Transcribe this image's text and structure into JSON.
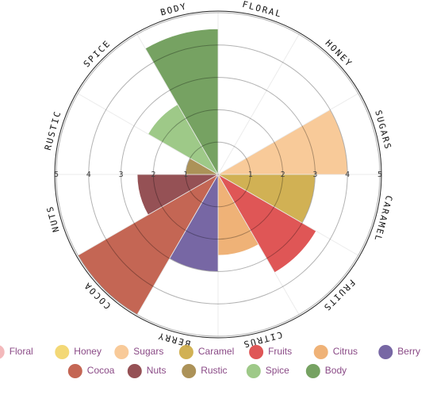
{
  "chart_data": {
    "type": "polar-area",
    "categories": [
      "Floral",
      "Honey",
      "Sugars",
      "Caramel",
      "Fruits",
      "Citrus",
      "Berry",
      "Cocoa",
      "Nuts",
      "Rustic",
      "Spice",
      "Body"
    ],
    "values": [
      0,
      0,
      4,
      3,
      3.5,
      2.5,
      3,
      5,
      2.5,
      1,
      2.5,
      4.5
    ],
    "colors": [
      "#f2b3b5",
      "#f2d56a",
      "#f7c590",
      "#cdaa45",
      "#dc4848",
      "#eeab6b",
      "#6b5a9c",
      "#bf5945",
      "#8c4246",
      "#a5894a",
      "#96c47e",
      "#6a9a55"
    ],
    "rlim": [
      0,
      5
    ],
    "rticks": [
      1,
      2,
      3,
      4,
      5
    ]
  }
}
